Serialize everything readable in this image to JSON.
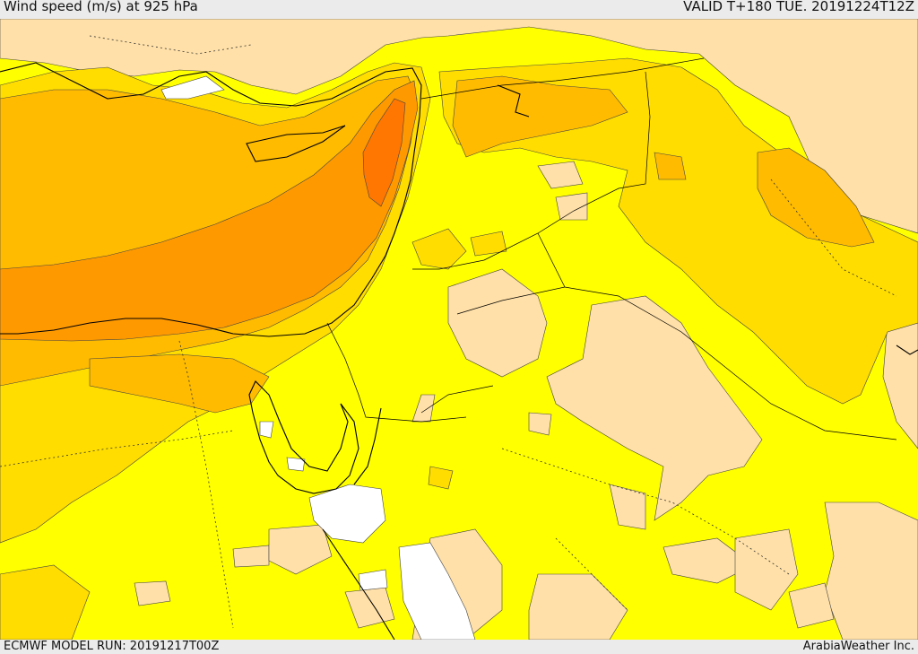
{
  "header": {
    "title": "Wind speed (m/s) at 925 hPa",
    "valid_time": "VALID T+180 TUE. 20191224T12Z"
  },
  "footer": {
    "model_run": "ECMWF MODEL RUN: 20191217T00Z",
    "credit": "ArabiaWeather Inc."
  },
  "colors": {
    "calm": "#ffffff",
    "light": "#ffe0a8",
    "moderate": "#ffff00",
    "fresh": "#ffdd00",
    "strong": "#ffbb00",
    "very_strong": "#ff9900",
    "gale": "#ff7700"
  }
}
